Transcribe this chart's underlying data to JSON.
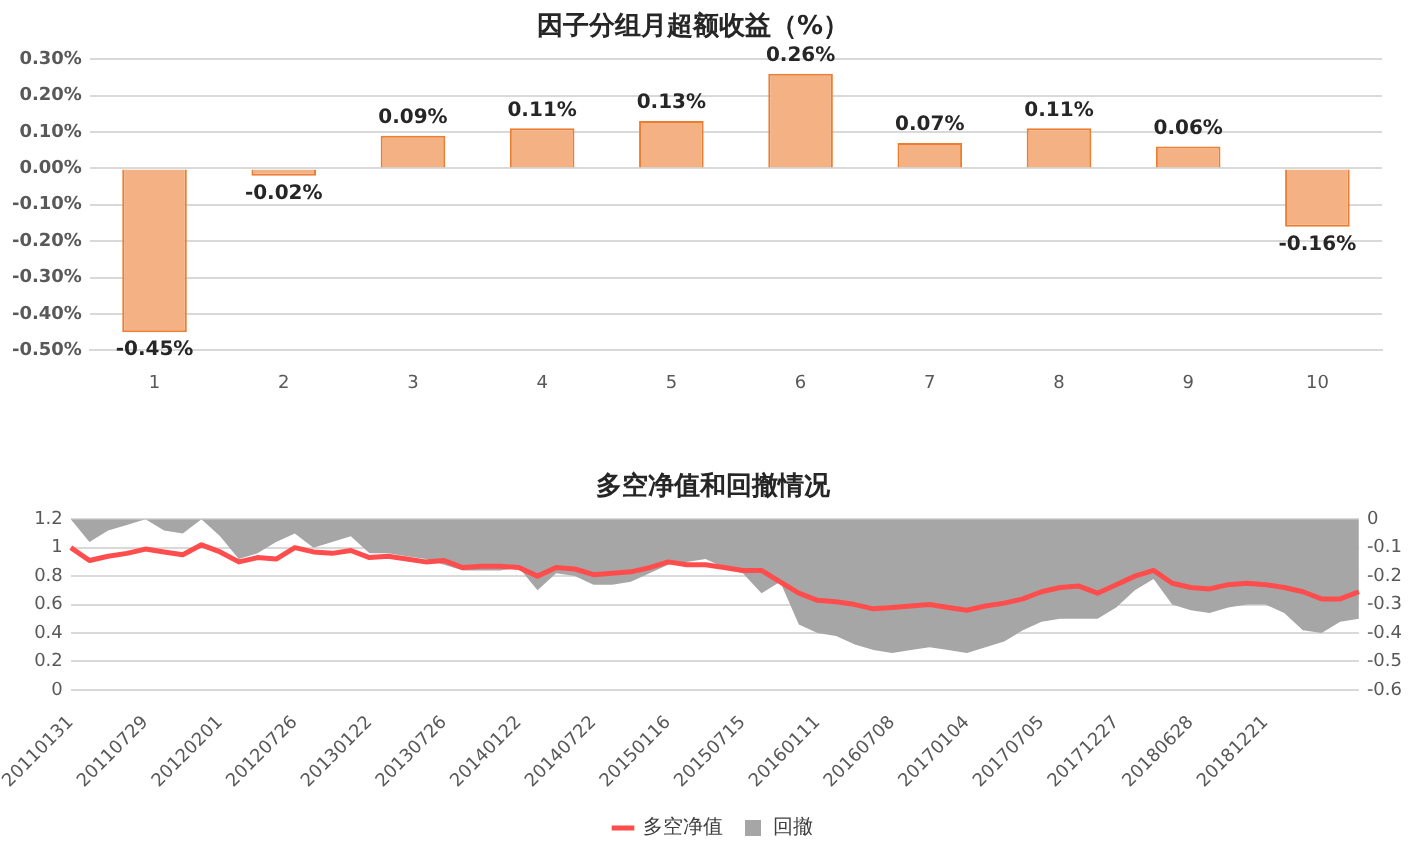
{
  "chart_data": [
    {
      "type": "bar",
      "title": "因子分组月超额收益（%）",
      "categories": [
        "1",
        "2",
        "3",
        "4",
        "5",
        "6",
        "7",
        "8",
        "9",
        "10"
      ],
      "values": [
        -0.45,
        -0.02,
        0.09,
        0.11,
        0.13,
        0.26,
        0.07,
        0.11,
        0.06,
        -0.16
      ],
      "value_labels": [
        "-0.45%",
        "-0.02%",
        "0.09%",
        "0.11%",
        "0.13%",
        "0.26%",
        "0.07%",
        "0.11%",
        "0.06%",
        "-0.16%"
      ],
      "color": "#f4b183",
      "ylim": [
        -0.5,
        0.3
      ],
      "yticks": [
        {
          "value": -0.5,
          "label": "-0.50%"
        },
        {
          "value": -0.4,
          "label": "-0.40%"
        },
        {
          "value": -0.3,
          "label": "-0.30%"
        },
        {
          "value": -0.2,
          "label": "-0.20%"
        },
        {
          "value": -0.1,
          "label": "-0.10%"
        },
        {
          "value": 0,
          "label": "0.00%"
        },
        {
          "value": 0.1,
          "label": "0.10%"
        },
        {
          "value": 0.2,
          "label": "0.20%"
        },
        {
          "value": 0.3,
          "label": "0.30%"
        }
      ],
      "grid": "y"
    },
    {
      "type": "line",
      "title": "多空净值和回撤情况",
      "categories": [
        "20110131",
        null,
        null,
        null,
        "20110729",
        null,
        null,
        null,
        "20120201",
        null,
        null,
        null,
        "20120726",
        null,
        null,
        null,
        "20130122",
        null,
        null,
        null,
        "20130726",
        null,
        null,
        null,
        "20140122",
        null,
        null,
        null,
        "20140722",
        null,
        null,
        null,
        "20150116",
        null,
        null,
        null,
        "20150715",
        null,
        null,
        null,
        "20160111",
        null,
        null,
        null,
        "20160708",
        null,
        null,
        null,
        "20170104",
        null,
        null,
        null,
        "20170705",
        null,
        null,
        null,
        "20171227",
        null,
        null,
        null,
        "20180628",
        null,
        null,
        null,
        "20181221",
        null,
        null,
        null,
        null,
        null
      ],
      "series": [
        {
          "name": "回撤",
          "type": "area",
          "axis": "y2",
          "color": "#a6a6a6",
          "values": [
            0,
            -0.08,
            -0.04,
            -0.02,
            0,
            -0.04,
            -0.05,
            0,
            -0.06,
            -0.14,
            -0.12,
            -0.08,
            -0.05,
            -0.1,
            -0.08,
            -0.06,
            -0.12,
            -0.12,
            -0.13,
            -0.14,
            -0.16,
            -0.18,
            -0.18,
            -0.18,
            -0.17,
            -0.25,
            -0.19,
            -0.2,
            -0.23,
            -0.23,
            -0.22,
            -0.19,
            -0.16,
            -0.15,
            -0.14,
            -0.17,
            -0.19,
            -0.26,
            -0.22,
            -0.37,
            -0.4,
            -0.41,
            -0.44,
            -0.46,
            -0.47,
            -0.46,
            -0.45,
            -0.46,
            -0.47,
            -0.45,
            -0.43,
            -0.39,
            -0.36,
            -0.35,
            -0.35,
            -0.35,
            -0.31,
            -0.25,
            -0.21,
            -0.3,
            -0.32,
            -0.33,
            -0.31,
            -0.3,
            -0.3,
            -0.33,
            -0.39,
            -0.4,
            -0.36,
            -0.35
          ]
        },
        {
          "name": "多空净值",
          "type": "line",
          "color": "#ff4d4d",
          "values": [
            1.0,
            0.91,
            0.94,
            0.96,
            0.99,
            0.97,
            0.95,
            1.02,
            0.97,
            0.9,
            0.93,
            0.92,
            1.0,
            0.97,
            0.96,
            0.98,
            0.93,
            0.94,
            0.92,
            0.9,
            0.91,
            0.86,
            0.87,
            0.87,
            0.86,
            0.8,
            0.86,
            0.85,
            0.81,
            0.82,
            0.83,
            0.86,
            0.9,
            0.88,
            0.88,
            0.86,
            0.84,
            0.84,
            0.76,
            0.68,
            0.63,
            0.62,
            0.6,
            0.57,
            0.58,
            0.59,
            0.6,
            0.58,
            0.56,
            0.59,
            0.61,
            0.64,
            0.69,
            0.72,
            0.73,
            0.68,
            0.74,
            0.8,
            0.84,
            0.75,
            0.72,
            0.71,
            0.74,
            0.75,
            0.74,
            0.72,
            0.69,
            0.64,
            0.64,
            0.69
          ]
        }
      ],
      "ylim": [
        0,
        1.2
      ],
      "yticks": [
        0,
        0.2,
        0.4,
        0.6,
        0.8,
        1,
        1.2
      ],
      "y2lim": [
        -0.6,
        0
      ],
      "y2ticks": [
        -0.6,
        -0.5,
        -0.4,
        -0.3,
        -0.2,
        -0.1,
        0
      ],
      "grid": "y",
      "legend": "bottom",
      "marker": "none"
    }
  ]
}
